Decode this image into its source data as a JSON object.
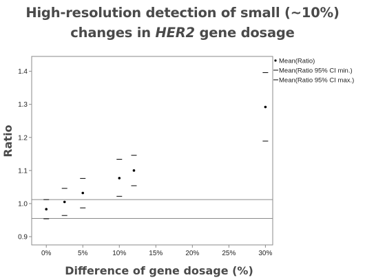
{
  "title": {
    "line1": "High-resolution detection of small (~10%)",
    "line2_pre": "changes in ",
    "line2_italic": "HER2",
    "line2_post": " gene dosage"
  },
  "chart_data": {
    "type": "scatter",
    "xlabel": "Difference of gene dosage (%)",
    "ylabel": "Ratio",
    "xlim": [
      -2,
      31
    ],
    "ylim": [
      0.875,
      1.445
    ],
    "x_ticks": [
      0,
      5,
      10,
      15,
      20,
      25,
      30
    ],
    "x_tick_labels": [
      "0%",
      "5%",
      "10%",
      "15%",
      "20%",
      "25%",
      "30%"
    ],
    "y_ticks": [
      0.9,
      1.0,
      1.1,
      1.2,
      1.3,
      1.4
    ],
    "y_tick_labels": [
      "0.9",
      "1.0",
      "1.1",
      "1.2",
      "1.3",
      "1.4"
    ],
    "reference_lines_y": [
      1.012,
      0.955
    ],
    "legend_position": "right",
    "series": [
      {
        "name": "Mean(Ratio)",
        "marker": "dot",
        "points": [
          [
            0,
            0.983
          ],
          [
            2.5,
            1.005
          ],
          [
            5,
            1.032
          ],
          [
            10,
            1.077
          ],
          [
            12,
            1.1
          ],
          [
            30,
            1.292
          ]
        ]
      },
      {
        "name": "Mean(Ratio 95% CI min.)",
        "marker": "dash",
        "points": [
          [
            0,
            0.954
          ],
          [
            2.5,
            0.964
          ],
          [
            5,
            0.987
          ],
          [
            10,
            1.022
          ],
          [
            12,
            1.054
          ],
          [
            30,
            1.189
          ]
        ]
      },
      {
        "name": "Mean(Ratio 95% CI max.)",
        "marker": "dash",
        "points": [
          [
            0,
            1.012
          ],
          [
            2.5,
            1.046
          ],
          [
            5,
            1.076
          ],
          [
            10,
            1.134
          ],
          [
            12,
            1.146
          ],
          [
            30,
            1.396
          ]
        ]
      }
    ]
  }
}
